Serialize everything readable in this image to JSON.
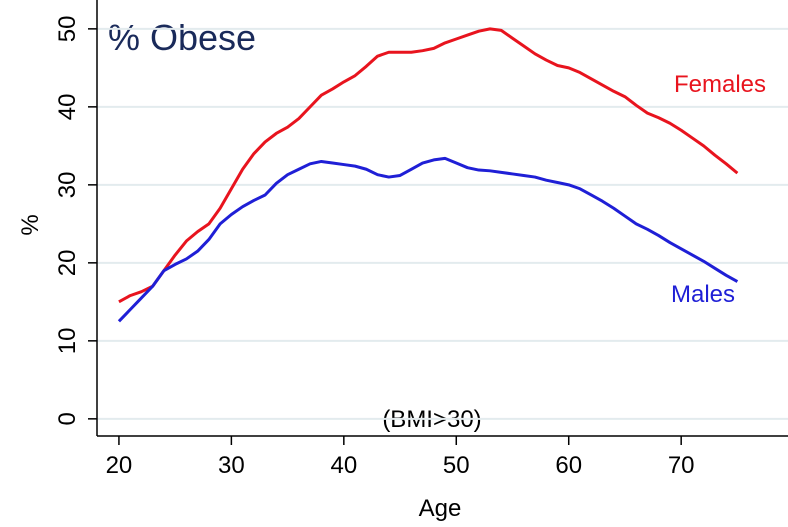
{
  "chart_data": {
    "type": "line",
    "title": "% Obese",
    "annotation": "(BMI>30)",
    "x_label": "Age",
    "y_label": "%",
    "x": [
      20,
      21,
      22,
      23,
      24,
      25,
      26,
      27,
      28,
      29,
      30,
      31,
      32,
      33,
      34,
      35,
      36,
      37,
      38,
      39,
      40,
      41,
      42,
      43,
      44,
      45,
      46,
      47,
      48,
      49,
      50,
      51,
      52,
      53,
      54,
      55,
      56,
      57,
      58,
      59,
      60,
      61,
      62,
      63,
      64,
      65,
      66,
      67,
      68,
      69,
      70,
      71,
      72,
      73,
      74,
      75
    ],
    "series": [
      {
        "name": "Females",
        "color": "#e8141e",
        "values": [
          15,
          15.8,
          16.3,
          17,
          19,
          21,
          22.8,
          24,
          25,
          27,
          29.5,
          32,
          34,
          35.5,
          36.6,
          37.4,
          38.5,
          40,
          41.5,
          42.3,
          43.2,
          44,
          45.2,
          46.5,
          47,
          47,
          47,
          47.2,
          47.5,
          48.2,
          48.7,
          49.2,
          49.7,
          50,
          49.8,
          48.8,
          47.8,
          46.8,
          46,
          45.3,
          45,
          44.4,
          43.6,
          42.8,
          42,
          41.3,
          40.2,
          39.2,
          38.6,
          37.9,
          37,
          36,
          35,
          33.8,
          32.7,
          31.5
        ]
      },
      {
        "name": "Males",
        "color": "#1f1fd6",
        "values": [
          12.5,
          14,
          15.5,
          17,
          19,
          19.8,
          20.5,
          21.5,
          23,
          25,
          26.2,
          27.2,
          28,
          28.7,
          30.2,
          31.3,
          32,
          32.7,
          33,
          32.8,
          32.6,
          32.4,
          32,
          31.3,
          31,
          31.2,
          32,
          32.8,
          33.2,
          33.4,
          32.8,
          32.2,
          31.9,
          31.8,
          31.6,
          31.4,
          31.2,
          31,
          30.6,
          30.3,
          30,
          29.5,
          28.7,
          27.9,
          27,
          26,
          25,
          24.3,
          23.5,
          22.6,
          21.8,
          21,
          20.2,
          19.3,
          18.4,
          17.6
        ]
      }
    ],
    "xlim": [
      18.05,
      79.5
    ],
    "ylim": [
      -2.2,
      53.7
    ],
    "xticks": [
      20,
      30,
      40,
      50,
      60,
      70
    ],
    "yticks": [
      0,
      10,
      20,
      30,
      40,
      50
    ],
    "grid": true
  }
}
